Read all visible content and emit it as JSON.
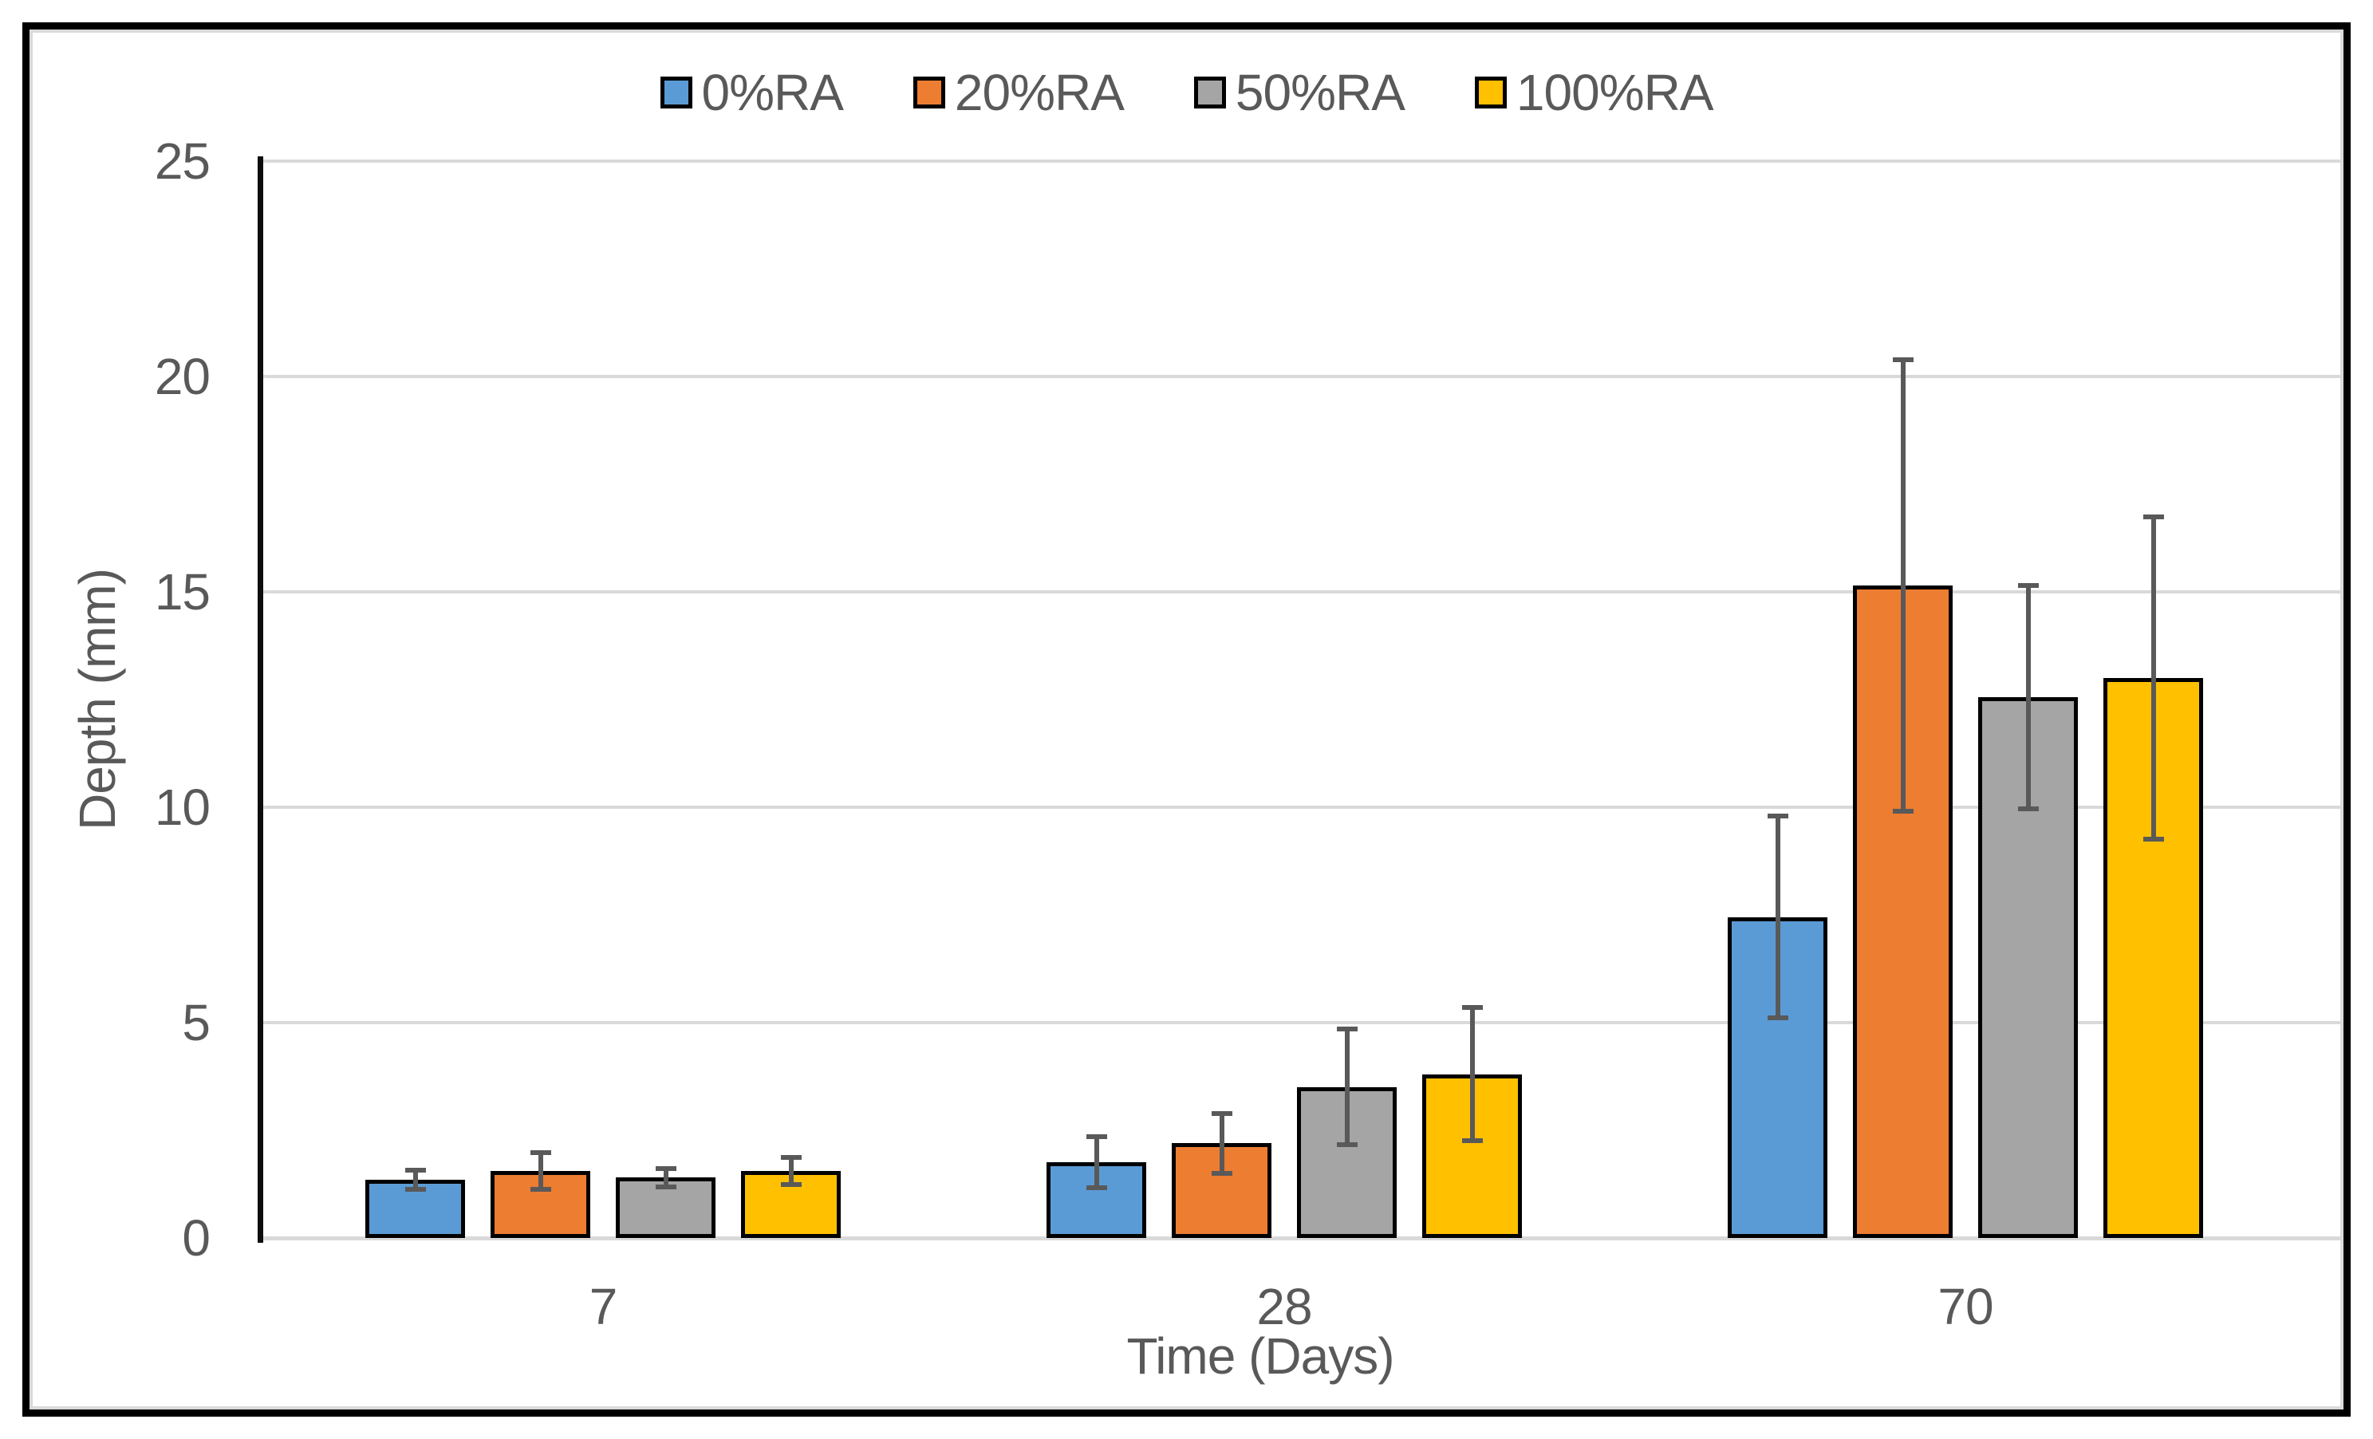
{
  "chart_data": {
    "type": "bar",
    "title": "",
    "xlabel": "Time (Days)",
    "ylabel": "Depth (mm)",
    "categories": [
      "7",
      "28",
      "70"
    ],
    "y_ticks": [
      0,
      5,
      10,
      15,
      20,
      25
    ],
    "ylim": [
      0,
      25
    ],
    "grid": "horizontal",
    "legend_position": "top-center",
    "error_bars": true,
    "series": [
      {
        "name": "0%RA",
        "color": "#5B9BD5",
        "values": [
          1.35,
          1.75,
          7.45
        ],
        "errors": [
          0.28,
          0.65,
          2.4
        ]
      },
      {
        "name": "20%RA",
        "color": "#ED7D31",
        "values": [
          1.55,
          2.2,
          15.15
        ],
        "errors": [
          0.48,
          0.75,
          5.3
        ]
      },
      {
        "name": "50%RA",
        "color": "#A5A5A5",
        "values": [
          1.4,
          3.5,
          12.55
        ],
        "errors": [
          0.27,
          1.4,
          2.65
        ]
      },
      {
        "name": "100%RA",
        "color": "#FFC000",
        "values": [
          1.55,
          3.8,
          13.0
        ],
        "errors": [
          0.37,
          1.6,
          3.8
        ]
      }
    ],
    "style": {
      "bar_border_color": "#000000",
      "error_bar_color": "#595959",
      "gridline_color": "#D9D9D9",
      "axis_line_color": "#0D0D0D",
      "frame_color": "#000000",
      "text_color": "#595959",
      "background": "#FFFFFF"
    }
  }
}
